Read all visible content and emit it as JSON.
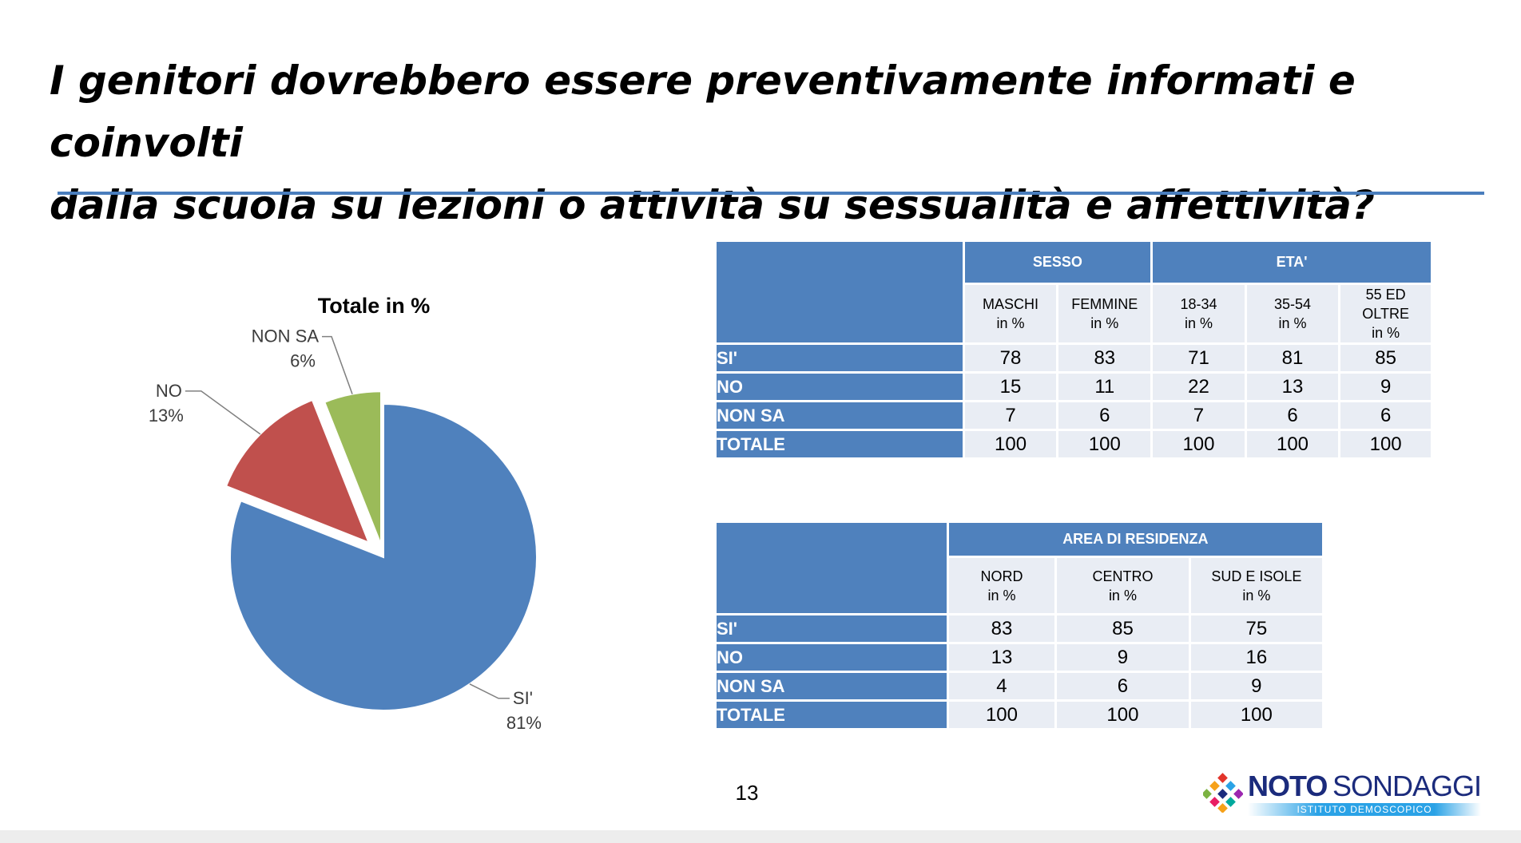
{
  "slide": {
    "title": "I genitori dovrebbero essere preventivamente informati e coinvolti\ndalla scuola su lezioni o attività su sessualità e affettività?",
    "page_number": "13"
  },
  "chart_data": {
    "type": "pie",
    "title": "Totale in %",
    "slices": [
      {
        "label": "SI'",
        "value": 81,
        "value_label": "81%",
        "color": "#4f81bd"
      },
      {
        "label": "NO",
        "value": 13,
        "value_label": "13%",
        "color": "#c0504d"
      },
      {
        "label": "NON SA",
        "value": 6,
        "value_label": "6%",
        "color": "#9bbb59"
      }
    ]
  },
  "table_eta": {
    "groups": [
      "SESSO",
      "ETA'"
    ],
    "columns": [
      {
        "name": "MASCHI",
        "unit": "in %"
      },
      {
        "name": "FEMMINE",
        "unit": "in %"
      },
      {
        "name": "18-34",
        "unit": "in %"
      },
      {
        "name": "35-54",
        "unit": "in %"
      },
      {
        "name": "55 ED OLTRE",
        "unit": "in %"
      }
    ],
    "rows": [
      {
        "label": "SI'",
        "values": [
          "78",
          "83",
          "71",
          "81",
          "85"
        ]
      },
      {
        "label": "NO",
        "values": [
          "15",
          "11",
          "22",
          "13",
          "9"
        ]
      },
      {
        "label": "NON SA",
        "values": [
          "7",
          "6",
          "7",
          "6",
          "6"
        ]
      },
      {
        "label": "TOTALE",
        "values": [
          "100",
          "100",
          "100",
          "100",
          "100"
        ]
      }
    ]
  },
  "table_area": {
    "group": "AREA DI RESIDENZA",
    "columns": [
      {
        "name": "NORD",
        "unit": "in %"
      },
      {
        "name": "CENTRO",
        "unit": "in %"
      },
      {
        "name": "SUD E ISOLE",
        "unit": "in %"
      }
    ],
    "rows": [
      {
        "label": "SI'",
        "values": [
          "83",
          "85",
          "75"
        ]
      },
      {
        "label": "NO",
        "values": [
          "13",
          "9",
          "16"
        ]
      },
      {
        "label": "NON SA",
        "values": [
          "4",
          "6",
          "9"
        ]
      },
      {
        "label": "TOTALE",
        "values": [
          "100",
          "100",
          "100"
        ]
      }
    ]
  },
  "logo": {
    "brand_bold": "NOTO",
    "brand_light": "SONDAGGI",
    "tagline": "ISTITUTO DEMOSCOPICO"
  }
}
